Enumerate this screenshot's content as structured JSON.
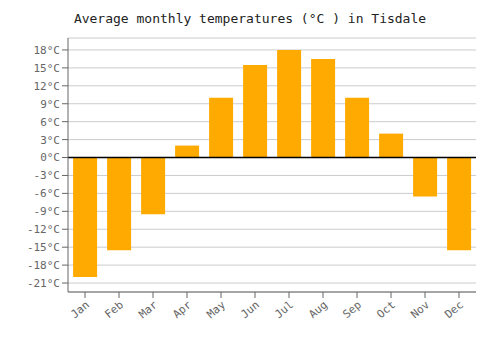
{
  "chart_data": {
    "type": "bar",
    "title": "Average monthly temperatures (°C ) in Tisdale",
    "categories": [
      "Jan",
      "Feb",
      "Mar",
      "Apr",
      "May",
      "Jun",
      "Jul",
      "Aug",
      "Sep",
      "Oct",
      "Nov",
      "Dec"
    ],
    "values": [
      -20,
      -15.5,
      -9.5,
      2,
      10,
      15.5,
      18,
      16.5,
      10,
      4,
      -6.5,
      -15.5
    ],
    "color": "#FFAA00",
    "ylim": [
      -22.5,
      20
    ],
    "yticks": [
      {
        "value": -21,
        "label": "-21°C"
      },
      {
        "value": -18,
        "label": "-18°C"
      },
      {
        "value": -15,
        "label": "-15°C"
      },
      {
        "value": -12,
        "label": "-12°C"
      },
      {
        "value": -9,
        "label": "-9°C"
      },
      {
        "value": -6,
        "label": "-6°C"
      },
      {
        "value": -3,
        "label": "-3°C"
      },
      {
        "value": 0,
        "label": "0°C"
      },
      {
        "value": 3,
        "label": "3°C"
      },
      {
        "value": 6,
        "label": "6°C"
      },
      {
        "value": 9,
        "label": "9°C"
      },
      {
        "value": 12,
        "label": "12°C"
      },
      {
        "value": 15,
        "label": "15°C"
      },
      {
        "value": 18,
        "label": "18°C"
      }
    ],
    "grid": true
  }
}
